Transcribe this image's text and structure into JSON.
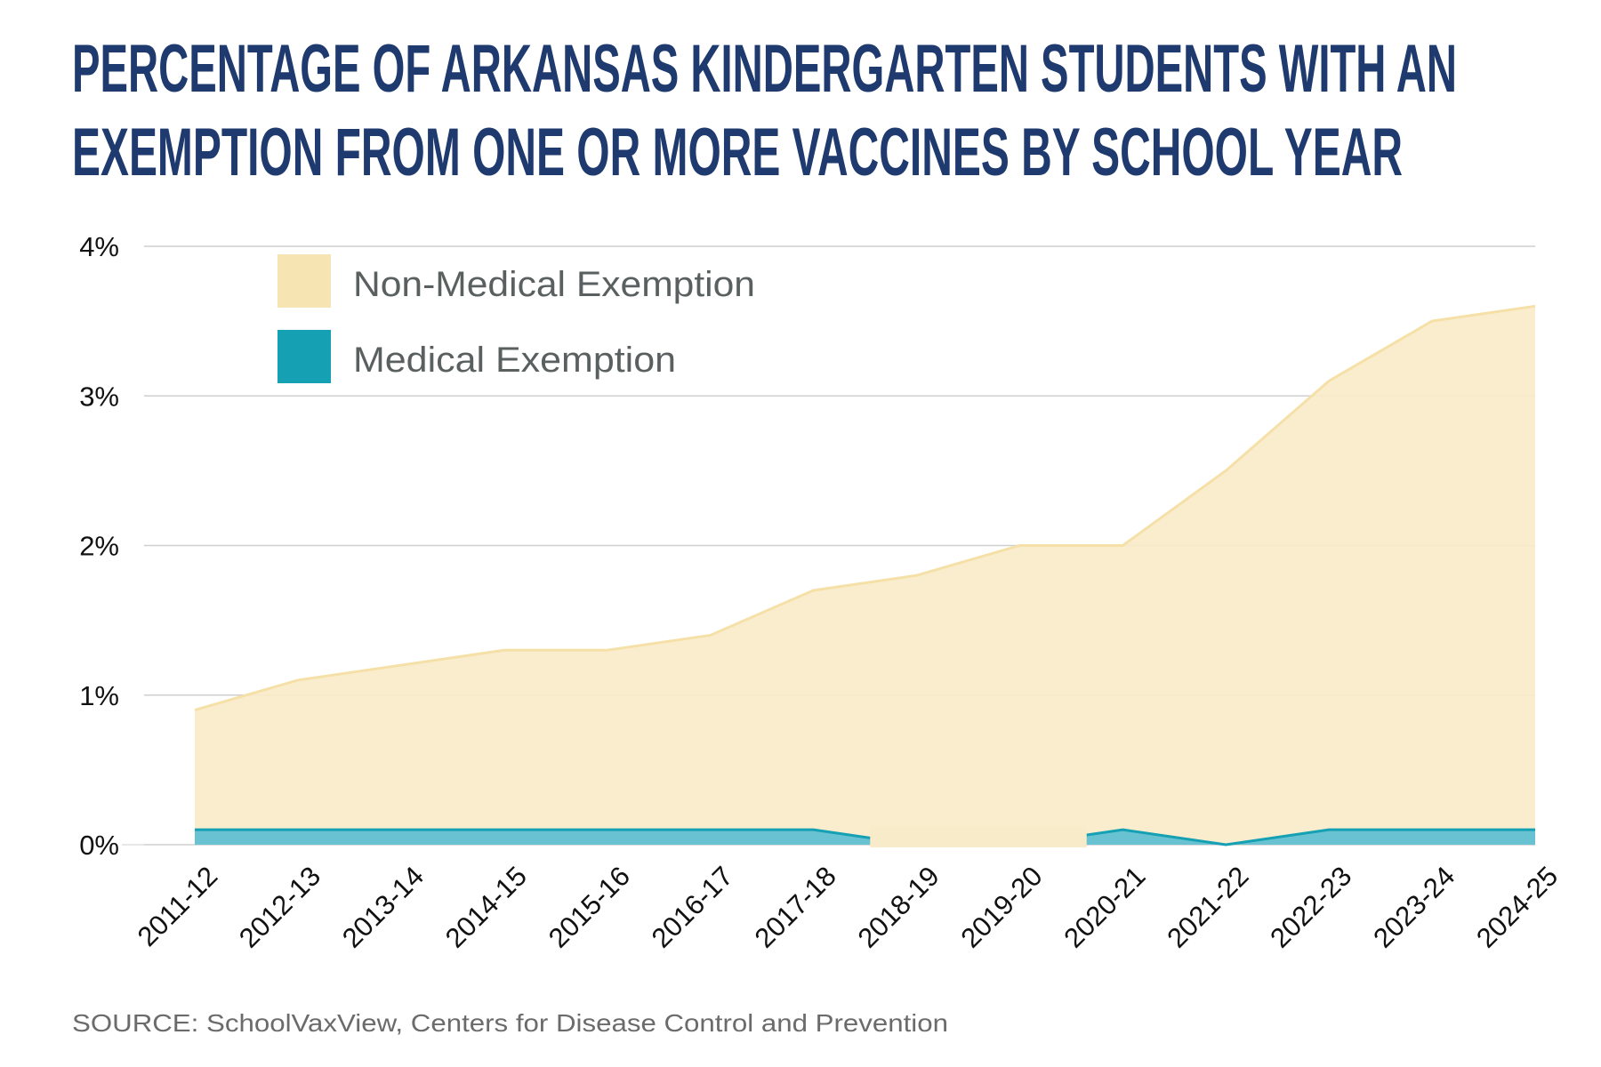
{
  "title_lines": [
    "PERCENTAGE OF ARKANSAS KINDERGARTEN STUDENTS WITH AN",
    "EXEMPTION FROM ONE OR MORE VACCINES BY SCHOOL YEAR"
  ],
  "source": "SOURCE: SchoolVaxView, Centers for Disease Control and Prevention",
  "colors": {
    "title": "#1f3a6e",
    "nonmed_fill": "#f8ebca",
    "nonmed_line": "#f5e0a8",
    "nonmed_legend": "#f7e4b3",
    "med_fill": "#69c2d2",
    "med_line": "#15a0b3",
    "med_legend": "#15a0b3"
  },
  "chart_data": {
    "type": "area",
    "stacked": true,
    "title": "Percentage of Arkansas Kindergarten Students with an Exemption from One or More Vaccines by School Year",
    "xlabel": "",
    "ylabel": "",
    "ylim": [
      0,
      4
    ],
    "y_ticks": [
      0,
      1,
      2,
      3,
      4
    ],
    "y_tick_labels": [
      "0%",
      "1%",
      "2%",
      "3%",
      "4%"
    ],
    "grid": true,
    "legend_position": "top-left",
    "categories": [
      "2011-12",
      "2012-13",
      "2013-14",
      "2014-15",
      "2015-16",
      "2016-17",
      "2017-18",
      "2018-19",
      "2019-20",
      "2020-21",
      "2021-22",
      "2022-23",
      "2023-24",
      "2024-25"
    ],
    "series": [
      {
        "name": "Non-Medical Exemption",
        "note": "plotted as stacked total (top of area)",
        "values": [
          0.9,
          1.1,
          1.2,
          1.3,
          1.3,
          1.4,
          1.7,
          1.8,
          2.0,
          2.0,
          2.5,
          3.1,
          3.5,
          3.6
        ]
      },
      {
        "name": "Medical Exemption",
        "values": [
          0.1,
          0.1,
          0.1,
          0.1,
          0.1,
          0.1,
          0.1,
          null,
          null,
          0.1,
          0.0,
          0.1,
          0.1,
          0.1
        ]
      }
    ]
  }
}
